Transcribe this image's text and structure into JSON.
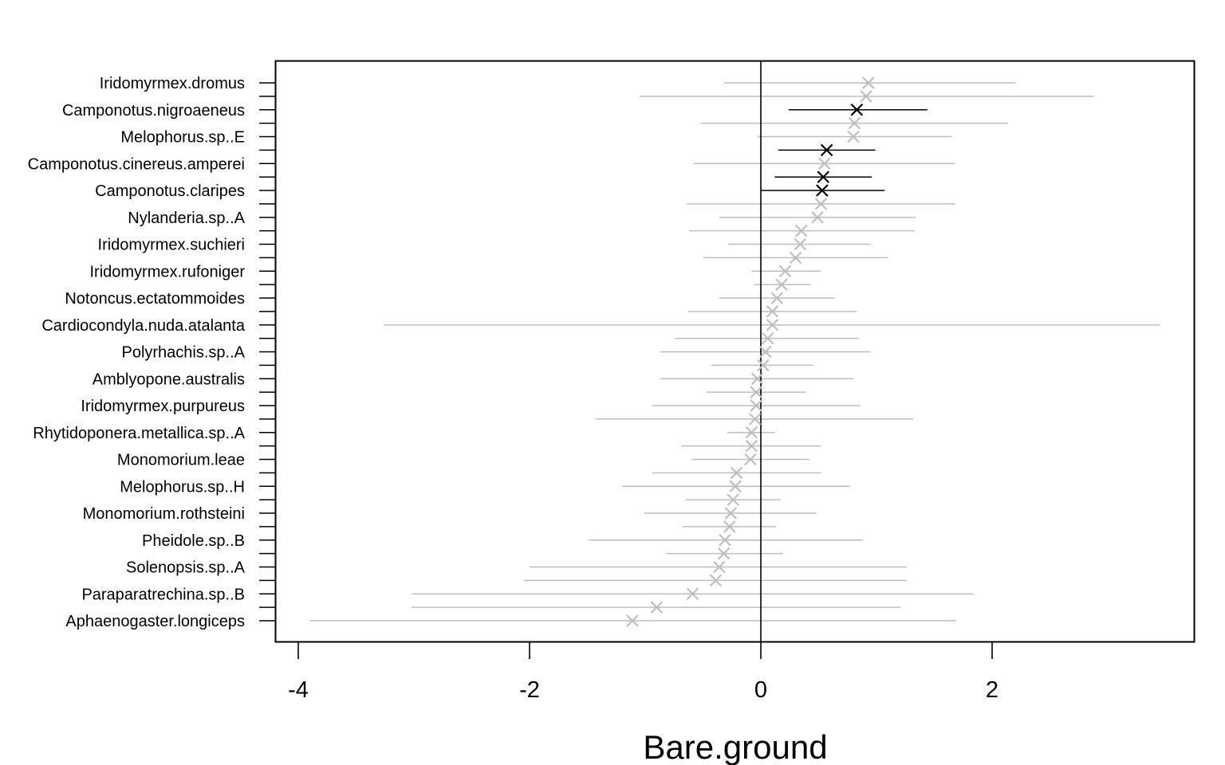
{
  "chart_data": {
    "type": "dot-interval",
    "xlabel": "Bare.ground",
    "xlim": [
      -4.1,
      3.5
    ],
    "xticks": [
      -4,
      -2,
      0,
      2
    ],
    "xtick_labels": [
      "-4",
      "-2",
      "0",
      "2"
    ],
    "reference_line_x": 0,
    "colors": {
      "highlight": "#000000",
      "muted": "#bebebe"
    },
    "labeled_rows": [
      0,
      2,
      4,
      6,
      8,
      10,
      12,
      14,
      16,
      18,
      20,
      22,
      24,
      26,
      28,
      30,
      32,
      34,
      36,
      38,
      40
    ],
    "species": [
      {
        "label": "Iridomyrmex.dromus",
        "est": 0.93,
        "lo": -0.32,
        "hi": 2.2,
        "highlight": false
      },
      {
        "label": "",
        "est": 0.91,
        "lo": -1.05,
        "hi": 2.88,
        "highlight": false
      },
      {
        "label": "Camponotus.nigroaeneus",
        "est": 0.83,
        "lo": 0.24,
        "hi": 1.44,
        "highlight": true
      },
      {
        "label": "",
        "est": 0.81,
        "lo": -0.52,
        "hi": 2.14,
        "highlight": false
      },
      {
        "label": "Melophorus.sp..E",
        "est": 0.8,
        "lo": -0.03,
        "hi": 1.65,
        "highlight": false
      },
      {
        "label": "",
        "est": 0.57,
        "lo": 0.15,
        "hi": 0.99,
        "highlight": true
      },
      {
        "label": "Camponotus.cinereus.amperei",
        "est": 0.55,
        "lo": -0.58,
        "hi": 1.68,
        "highlight": false
      },
      {
        "label": "",
        "est": 0.54,
        "lo": 0.12,
        "hi": 0.96,
        "highlight": true
      },
      {
        "label": "Camponotus.claripes",
        "est": 0.53,
        "lo": 0.0,
        "hi": 1.07,
        "highlight": true
      },
      {
        "label": "",
        "est": 0.52,
        "lo": -0.64,
        "hi": 1.68,
        "highlight": false
      },
      {
        "label": "Nylanderia.sp..A",
        "est": 0.49,
        "lo": -0.36,
        "hi": 1.34,
        "highlight": false
      },
      {
        "label": "",
        "est": 0.35,
        "lo": -0.62,
        "hi": 1.33,
        "highlight": false
      },
      {
        "label": "Iridomyrmex.suchieri",
        "est": 0.34,
        "lo": -0.28,
        "hi": 0.95,
        "highlight": false
      },
      {
        "label": "",
        "est": 0.3,
        "lo": -0.5,
        "hi": 1.1,
        "highlight": false
      },
      {
        "label": "Iridomyrmex.rufoniger",
        "est": 0.21,
        "lo": -0.08,
        "hi": 0.52,
        "highlight": false
      },
      {
        "label": "",
        "est": 0.18,
        "lo": -0.06,
        "hi": 0.43,
        "highlight": false
      },
      {
        "label": "Notoncus.ectatommoides",
        "est": 0.14,
        "lo": -0.36,
        "hi": 0.64,
        "highlight": false
      },
      {
        "label": "",
        "est": 0.1,
        "lo": -0.63,
        "hi": 0.83,
        "highlight": false
      },
      {
        "label": "Cardiocondyla.nuda.atalanta",
        "est": 0.1,
        "lo": -3.26,
        "hi": 3.45,
        "highlight": false
      },
      {
        "label": "",
        "est": 0.06,
        "lo": -0.74,
        "hi": 0.85,
        "highlight": false
      },
      {
        "label": "Polyrhachis.sp..A",
        "est": 0.04,
        "lo": -0.87,
        "hi": 0.95,
        "highlight": false
      },
      {
        "label": "",
        "est": 0.02,
        "lo": -0.43,
        "hi": 0.45,
        "highlight": false
      },
      {
        "label": "Amblyopone.australis",
        "est": -0.03,
        "lo": -0.87,
        "hi": 0.8,
        "highlight": false
      },
      {
        "label": "",
        "est": -0.04,
        "lo": -0.47,
        "hi": 0.39,
        "highlight": false
      },
      {
        "label": "Iridomyrmex.purpureus",
        "est": -0.04,
        "lo": -0.94,
        "hi": 0.86,
        "highlight": false
      },
      {
        "label": "",
        "est": -0.05,
        "lo": -1.43,
        "hi": 1.32,
        "highlight": false
      },
      {
        "label": "Rhytidoponera.metallica.sp..A",
        "est": -0.08,
        "lo": -0.29,
        "hi": 0.12,
        "highlight": false
      },
      {
        "label": "",
        "est": -0.08,
        "lo": -0.69,
        "hi": 0.52,
        "highlight": false
      },
      {
        "label": "Monomorium.leae",
        "est": -0.09,
        "lo": -0.6,
        "hi": 0.42,
        "highlight": false
      },
      {
        "label": "",
        "est": -0.21,
        "lo": -0.94,
        "hi": 0.52,
        "highlight": false
      },
      {
        "label": "Melophorus.sp..H",
        "est": -0.22,
        "lo": -1.2,
        "hi": 0.77,
        "highlight": false
      },
      {
        "label": "",
        "est": -0.24,
        "lo": -0.65,
        "hi": 0.17,
        "highlight": false
      },
      {
        "label": "Monomorium.rothsteini",
        "est": -0.26,
        "lo": -1.01,
        "hi": 0.48,
        "highlight": false
      },
      {
        "label": "",
        "est": -0.27,
        "lo": -0.68,
        "hi": 0.13,
        "highlight": false
      },
      {
        "label": "Pheidole.sp..B",
        "est": -0.31,
        "lo": -1.49,
        "hi": 0.88,
        "highlight": false
      },
      {
        "label": "",
        "est": -0.32,
        "lo": -0.82,
        "hi": 0.19,
        "highlight": false
      },
      {
        "label": "Solenopsis.sp..A",
        "est": -0.36,
        "lo": -2.0,
        "hi": 1.26,
        "highlight": false
      },
      {
        "label": "",
        "est": -0.39,
        "lo": -2.05,
        "hi": 1.26,
        "highlight": false
      },
      {
        "label": "Paraparatrechina.sp..B",
        "est": -0.59,
        "lo": -3.02,
        "hi": 1.84,
        "highlight": false
      },
      {
        "label": "",
        "est": -0.9,
        "lo": -3.02,
        "hi": 1.21,
        "highlight": false
      },
      {
        "label": "Aphaenogaster.longiceps",
        "est": -1.11,
        "lo": -3.9,
        "hi": 1.69,
        "highlight": false
      }
    ]
  }
}
